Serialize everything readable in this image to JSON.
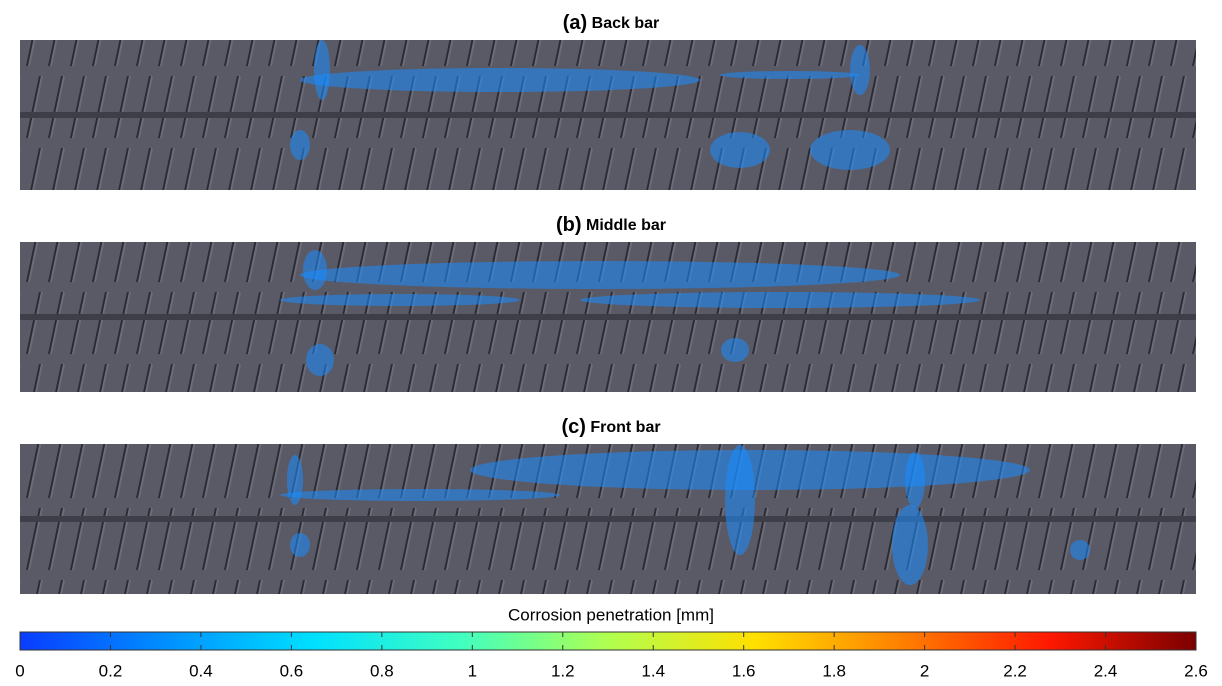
{
  "panels": [
    {
      "label": "(a)",
      "title": "Back bar"
    },
    {
      "label": "(b)",
      "title": "Middle bar"
    },
    {
      "label": "(c)",
      "title": "Front bar"
    }
  ],
  "colorbar": {
    "label": "Corrosion penetration [mm]",
    "colormap": "jet",
    "lim": [
      0,
      2.6
    ],
    "ticks": [
      0,
      0.2,
      0.4,
      0.6,
      0.8,
      1,
      1.2,
      1.4,
      1.6,
      1.8,
      2,
      2.2,
      2.4,
      2.6
    ]
  }
}
